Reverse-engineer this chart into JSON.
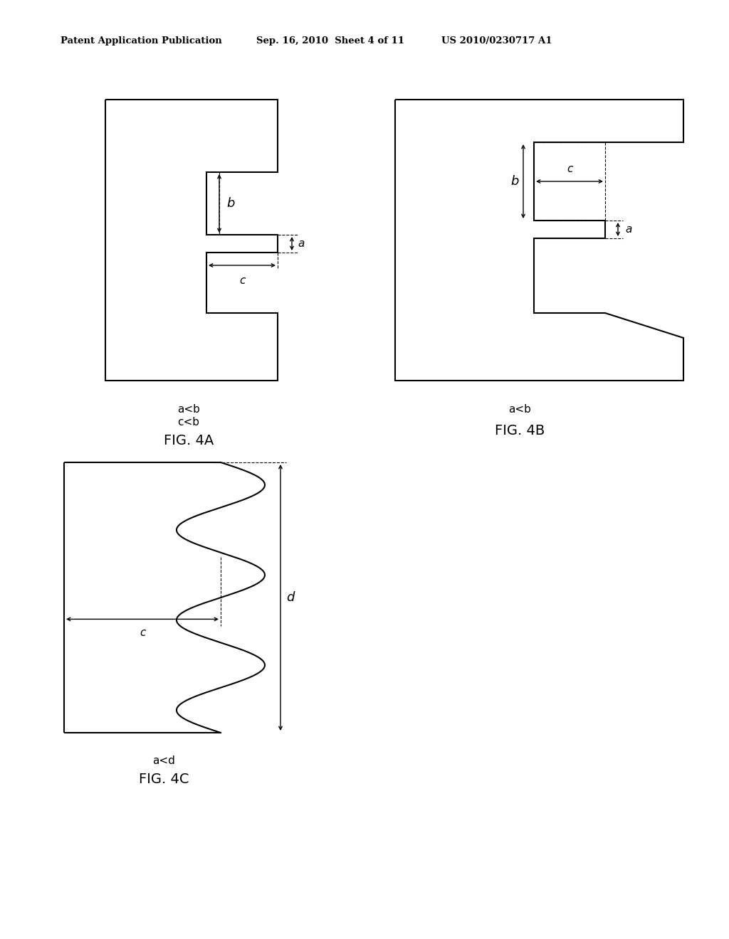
{
  "bg_color": "#ffffff",
  "line_color": "#000000",
  "lw": 1.5,
  "fig4a_label": "FIG. 4A",
  "fig4b_label": "FIG. 4B",
  "fig4c_label": "FIG. 4C",
  "fig4a_sub": "a<b\nc<b",
  "fig4b_sub": "a<b",
  "fig4c_sub": "a<d"
}
